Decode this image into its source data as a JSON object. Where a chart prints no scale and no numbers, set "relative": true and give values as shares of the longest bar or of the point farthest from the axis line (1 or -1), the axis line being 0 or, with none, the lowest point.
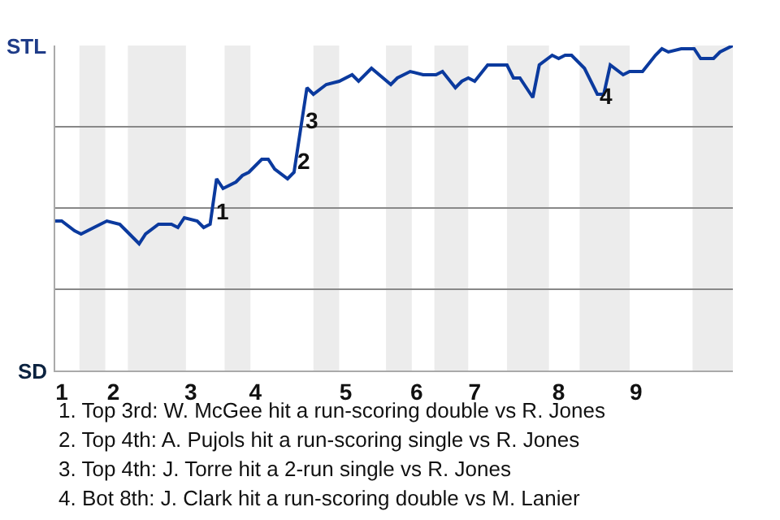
{
  "chart_data": {
    "type": "line",
    "relative": true,
    "categories": [
      null,
      "1",
      null,
      null,
      null,
      null,
      null,
      null,
      null,
      "2",
      null,
      null,
      null,
      null,
      null,
      null,
      null,
      null,
      null,
      null,
      null,
      "3",
      null,
      null,
      null,
      null,
      null,
      null,
      null,
      null,
      null,
      "4",
      null,
      null,
      null,
      null,
      null,
      null,
      null,
      null,
      null,
      null,
      null,
      null,
      null,
      "5",
      null,
      null,
      null,
      null,
      null,
      null,
      null,
      null,
      null,
      null,
      "6",
      null,
      null,
      null,
      null,
      null,
      null,
      null,
      null,
      "7",
      null,
      null,
      null,
      null,
      null,
      null,
      null,
      null,
      null,
      null,
      null,
      null,
      "8",
      null,
      null,
      null,
      null,
      null,
      null,
      null,
      null,
      null,
      null,
      null,
      "9",
      null,
      null,
      null,
      null,
      null,
      null,
      null,
      null,
      null,
      null,
      null,
      null,
      null,
      null,
      null
    ],
    "series": [
      {
        "color": "#0b3a9e",
        "values": [
          0.46,
          0.46,
          null,
          0.43,
          0.42,
          null,
          0.44,
          0.45,
          0.46,
          null,
          0.45,
          0.43,
          null,
          0.39,
          0.42,
          null,
          0.45,
          null,
          0.45,
          0.44,
          0.47,
          null,
          0.46,
          0.44,
          0.45,
          0.59,
          0.56,
          null,
          0.58,
          0.6,
          0.61,
          null,
          0.65,
          0.65,
          0.62,
          null,
          0.59,
          0.61,
          0.74,
          0.87,
          0.85,
          null,
          0.88,
          null,
          0.89,
          null,
          0.91,
          0.89,
          null,
          0.93,
          null,
          null,
          0.88,
          0.9,
          null,
          0.92,
          null,
          0.91,
          0.91,
          0.91,
          0.92,
          null,
          0.87,
          0.89,
          0.9,
          0.89,
          null,
          0.94,
          0.94,
          null,
          0.94,
          0.9,
          0.9,
          null,
          0.84,
          0.94,
          null,
          0.97,
          0.96,
          0.97,
          0.97,
          null,
          0.93,
          null,
          0.85,
          0.85,
          0.94,
          null,
          0.91,
          0.92,
          0.92,
          0.92,
          null,
          0.97,
          0.99,
          0.98,
          null,
          0.99,
          null,
          0.99,
          0.96,
          null,
          0.96,
          0.98,
          null,
          1.0
        ]
      }
    ],
    "grid": "y",
    "marker": "none",
    "line_style": "solid",
    "annotations": [
      "STL",
      "SD",
      "1",
      "2",
      "3",
      "4",
      "1. Top 3rd: W. McGee hit a run-scoring double vs R. Jones",
      "2. Top 4th: A. Pujols hit a run-scoring single vs R. Jones",
      "3. Top 4th: J. Torre hit a 2-run single vs R. Jones",
      "4. Bot 8th: J. Clark hit a run-scoring double vs M. Lanier"
    ]
  }
}
